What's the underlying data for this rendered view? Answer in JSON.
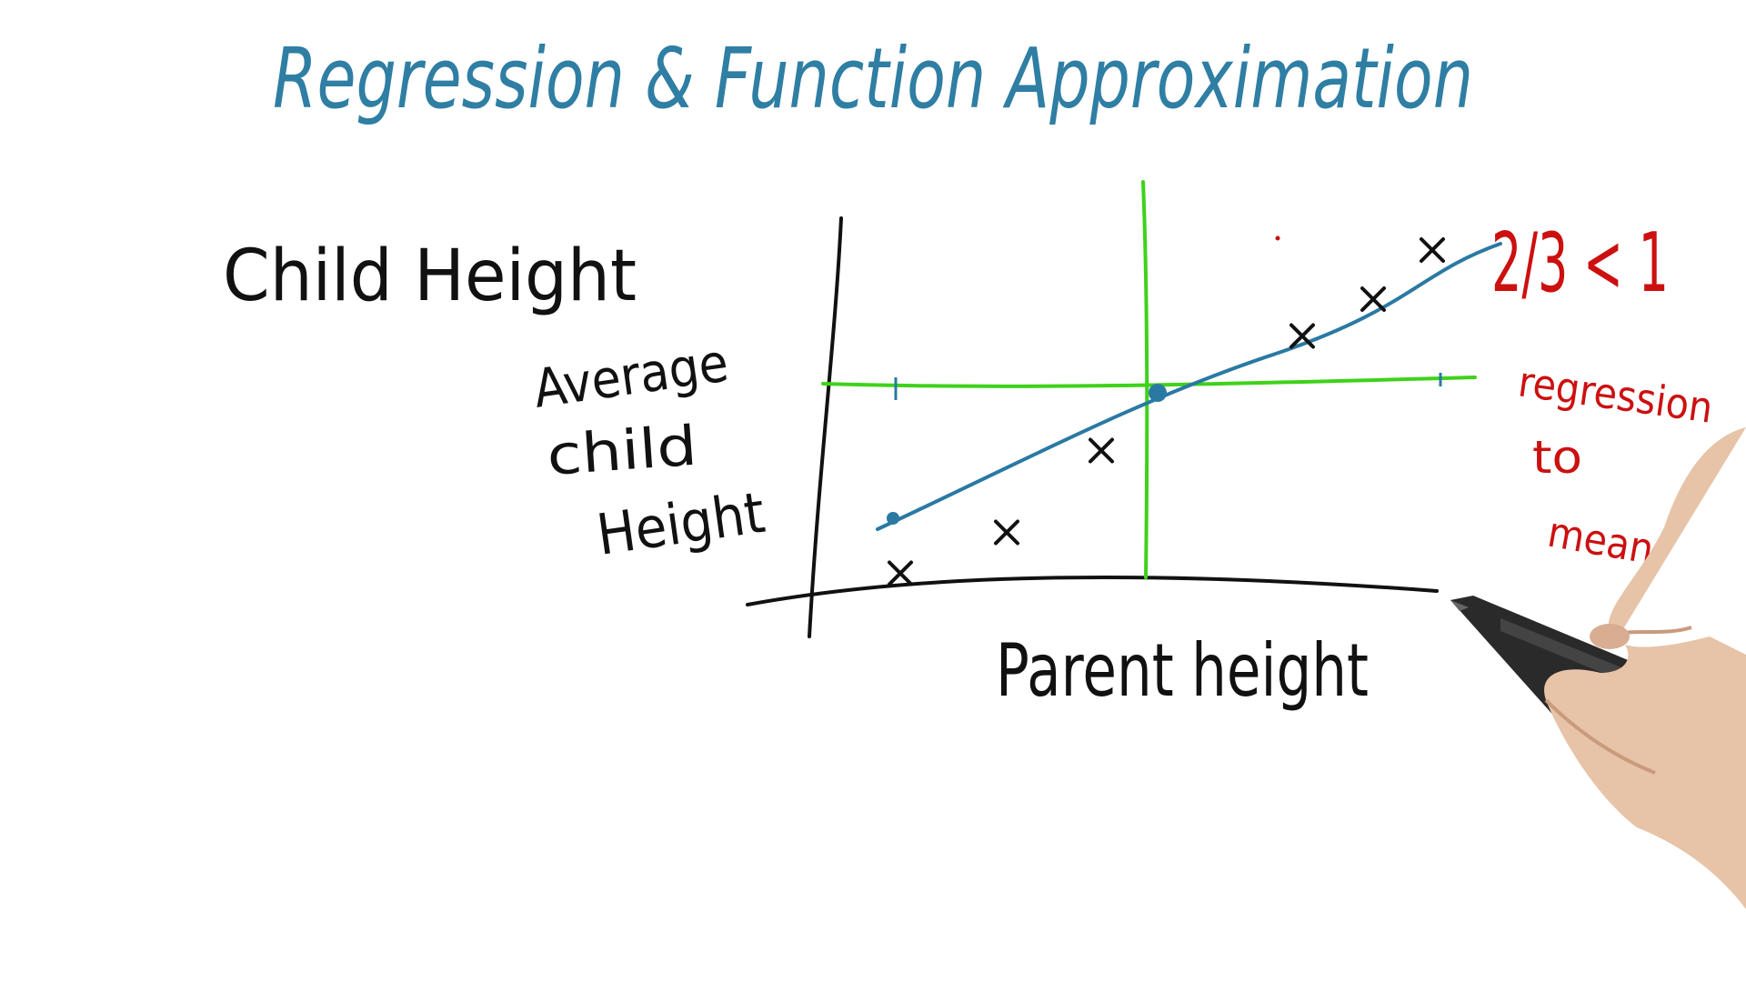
{
  "title": "Regression & Function Approximation",
  "labels": {
    "child_height": "Child Height",
    "y_axis_line1": "Average",
    "y_axis_line2": "child",
    "y_axis_line3": "Height",
    "x_axis": "Parent height",
    "slope_note": "2/3 < 1",
    "side_note_line1": "regression",
    "side_note_line2": "to",
    "side_note_line3": "mean."
  },
  "colors": {
    "title": "#2f7ea3",
    "ink": "#111111",
    "axes_green": "#3ed21a",
    "fit_line": "#2a79a3",
    "note_red": "#cc1010"
  },
  "chart_data": {
    "type": "scatter",
    "x": [
      1.0,
      1.9,
      2.7,
      4.4,
      5.0,
      5.5
    ],
    "y": [
      1.55,
      2.05,
      3.05,
      4.45,
      4.9,
      5.5
    ],
    "fit_line": {
      "slope": 0.667,
      "through_mean": true
    },
    "mean_marker": "center-dot",
    "xlabel": "Parent height",
    "ylabel": "Average child Height"
  },
  "icons": {
    "pen": "stylus-pen-icon",
    "hand": "hand-icon"
  }
}
